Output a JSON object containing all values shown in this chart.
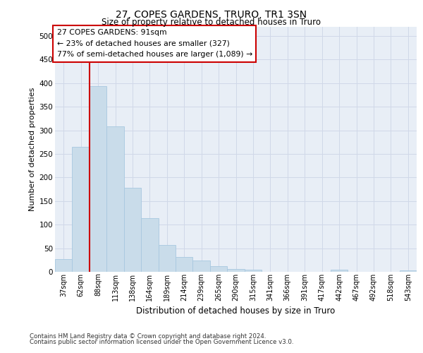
{
  "title_line1": "27, COPES GARDENS, TRURO, TR1 3SN",
  "title_line2": "Size of property relative to detached houses in Truro",
  "xlabel": "Distribution of detached houses by size in Truro",
  "ylabel": "Number of detached properties",
  "footer_line1": "Contains HM Land Registry data © Crown copyright and database right 2024.",
  "footer_line2": "Contains public sector information licensed under the Open Government Licence v3.0.",
  "annotation_line1": "27 COPES GARDENS: 91sqm",
  "annotation_line2": "← 23% of detached houses are smaller (327)",
  "annotation_line3": "77% of semi-detached houses are larger (1,089) →",
  "bar_labels": [
    "37sqm",
    "62sqm",
    "88sqm",
    "113sqm",
    "138sqm",
    "164sqm",
    "189sqm",
    "214sqm",
    "239sqm",
    "265sqm",
    "290sqm",
    "315sqm",
    "341sqm",
    "366sqm",
    "391sqm",
    "417sqm",
    "442sqm",
    "467sqm",
    "492sqm",
    "518sqm",
    "543sqm"
  ],
  "bar_values": [
    27,
    265,
    393,
    308,
    178,
    113,
    57,
    32,
    24,
    12,
    6,
    4,
    0,
    0,
    0,
    0,
    4,
    0,
    0,
    0,
    3
  ],
  "bar_color": "#c9dcea",
  "bar_edge_color": "#a8c8e0",
  "vline_color": "#cc0000",
  "annotation_box_color": "#cc0000",
  "grid_color": "#d0d8e8",
  "bg_color": "#e8eef6",
  "ylim": [
    0,
    520
  ],
  "yticks": [
    0,
    50,
    100,
    150,
    200,
    250,
    300,
    350,
    400,
    450,
    500
  ]
}
